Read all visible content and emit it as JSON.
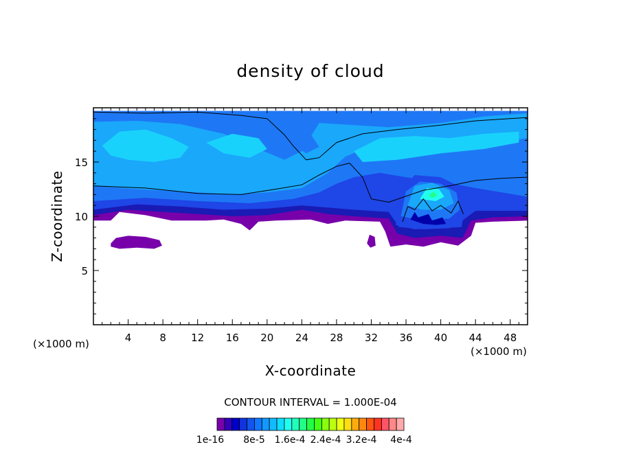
{
  "chart_data": {
    "type": "heatmap",
    "title": "density of cloud",
    "xlabel": "X-coordinate",
    "ylabel": "Z-coordinate",
    "x_unit": "(×1000 m)",
    "y_unit": "(×1000 m)",
    "xlim": [
      0,
      50
    ],
    "ylim": [
      0,
      20
    ],
    "xticks": [
      4,
      8,
      12,
      16,
      20,
      24,
      28,
      32,
      36,
      40,
      44,
      48
    ],
    "yticks": [
      5,
      10,
      15
    ],
    "contour_interval_text": "CONTOUR INTERVAL = 1.000E-04",
    "colorbar": {
      "colors": [
        "#7700aa",
        "#3300bb",
        "#0000cc",
        "#1133dd",
        "#1155ee",
        "#1177ff",
        "#1199ff",
        "#11bbff",
        "#11ddff",
        "#22ffee",
        "#22ffbb",
        "#22ff88",
        "#22ff44",
        "#44ff11",
        "#88ff11",
        "#bbff11",
        "#eeff11",
        "#ffdd11",
        "#ffaa11",
        "#ff8811",
        "#ff5511",
        "#ff3322",
        "#ff5566",
        "#ff8888",
        "#ffaaaa"
      ],
      "labels": [
        "1e-16",
        "8e-5",
        "1.6e-4",
        "2.4e-4",
        "3.2e-4",
        "4e-4"
      ]
    },
    "regions": [
      {
        "name": "upper-cloud-layer",
        "x_range": [
          0,
          50
        ],
        "z_range": [
          9.6,
          19.7
        ],
        "level": "8e-5 to 1.6e-4"
      },
      {
        "name": "convective-core",
        "x_range": [
          34,
          43
        ],
        "z_range": [
          7,
          14
        ],
        "level": "up to 2.4e-4"
      },
      {
        "name": "low-patch-left",
        "x_range": [
          2,
          8
        ],
        "z_range": [
          7,
          8.2
        ],
        "level": "1e-16"
      },
      {
        "name": "low-patch-mid",
        "x_range": [
          31.5,
          32.5
        ],
        "z_range": [
          7.2,
          8.3
        ],
        "level": "1e-16"
      }
    ]
  }
}
